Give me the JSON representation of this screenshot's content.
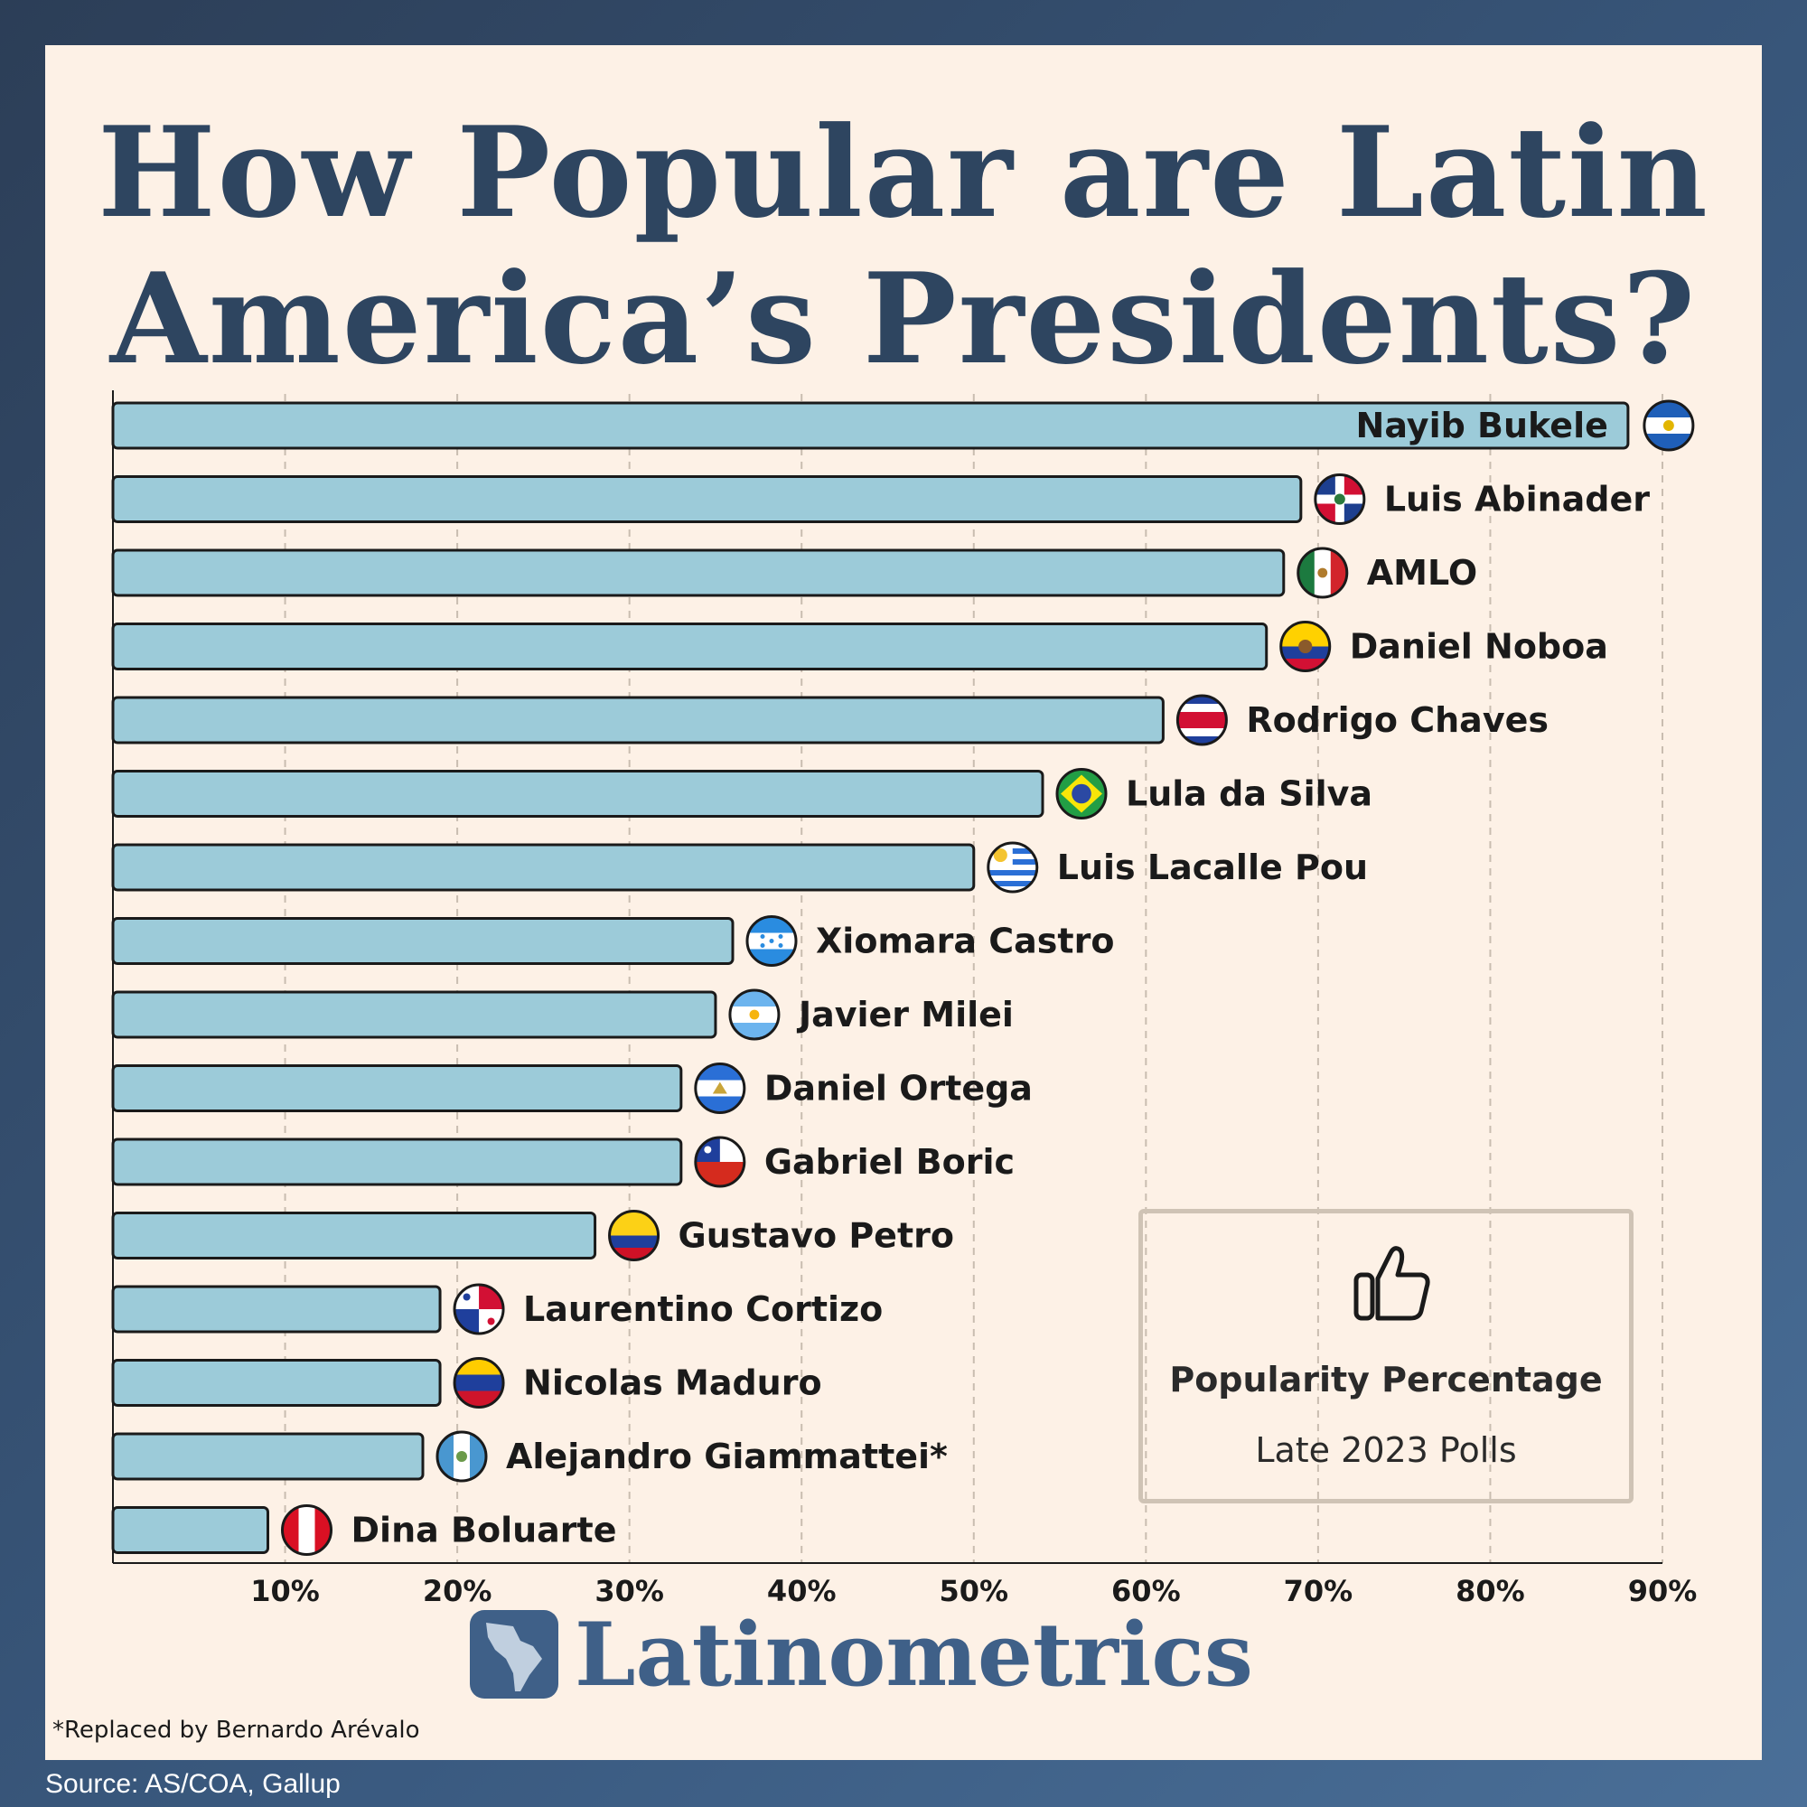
{
  "title_line1": "How Popular are Latin",
  "title_line2": "America’s Presidents?",
  "chart_data": {
    "type": "bar",
    "orientation": "horizontal",
    "categories": [
      "Nayib Bukele",
      "Luis Abinader",
      "AMLO",
      "Daniel Noboa",
      "Rodrigo Chaves",
      "Lula da Silva",
      "Luis Lacalle Pou",
      "Xiomara Castro",
      "Javier Milei",
      "Daniel Ortega",
      "Gabriel Boric",
      "Gustavo Petro",
      "Laurentino Cortizo",
      "Nicolas Maduro",
      "Alejandro Giammattei*",
      "Dina Boluarte"
    ],
    "values": [
      88,
      69,
      68,
      67,
      61,
      54,
      50,
      36,
      35,
      33,
      33,
      28,
      19,
      19,
      18,
      9
    ],
    "flags": [
      "el-salvador-flag-icon",
      "dominican-republic-flag-icon",
      "mexico-flag-icon",
      "ecuador-flag-icon",
      "costa-rica-flag-icon",
      "brazil-flag-icon",
      "uruguay-flag-icon",
      "honduras-flag-icon",
      "argentina-flag-icon",
      "nicaragua-flag-icon",
      "chile-flag-icon",
      "colombia-flag-icon",
      "panama-flag-icon",
      "venezuela-flag-icon",
      "guatemala-flag-icon",
      "peru-flag-icon"
    ],
    "xticks": [
      "10%",
      "20%",
      "30%",
      "40%",
      "50%",
      "60%",
      "70%",
      "80%",
      "90%"
    ],
    "xlim": [
      0,
      90
    ],
    "grid": true,
    "bar_color": "#9ccbd9"
  },
  "legend": {
    "icon": "thumbs-up-icon",
    "title": "Popularity Percentage",
    "subtitle": "Late 2023 Polls"
  },
  "brand": "Latinometrics",
  "footnote": "*Replaced by Bernardo Arévalo",
  "source": "Source: AS/COA, Gallup",
  "colors": {
    "title": "#2e4560",
    "brand": "#3f6088",
    "panel": "#fdf1e6",
    "bar": "#9ccbd9"
  }
}
